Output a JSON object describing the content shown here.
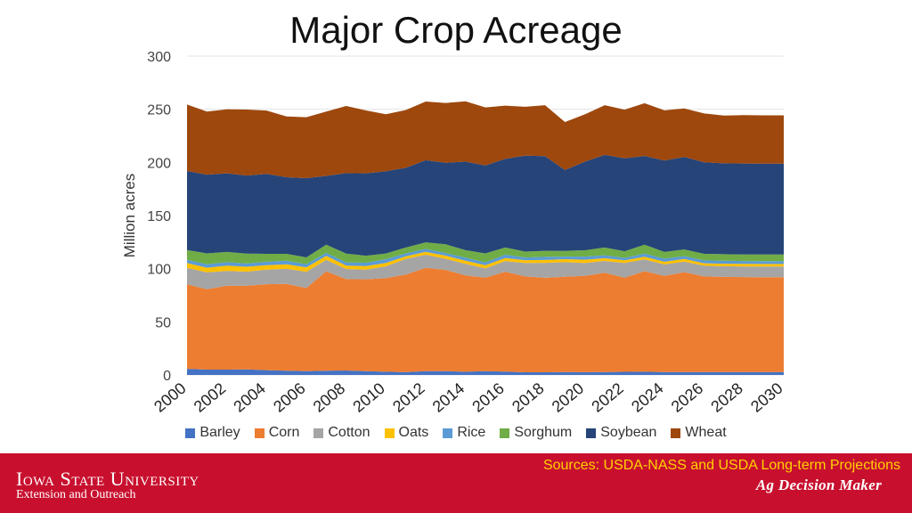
{
  "slide": {
    "title": "Major Crop Acreage"
  },
  "footer": {
    "university": "Iowa State University",
    "unit": "Extension and Outreach",
    "sources": "Sources: USDA-NASS and USDA Long-term Projections",
    "brand": "Ag Decision Maker",
    "bar_color": "#c8102e",
    "sources_color": "#ffd200"
  },
  "chart_data": {
    "type": "area",
    "stacked": true,
    "title": "",
    "xlabel": "",
    "ylabel": "Million acres",
    "ylim": [
      0,
      300
    ],
    "yticks": [
      0,
      50,
      100,
      150,
      200,
      250,
      300
    ],
    "x": [
      2000,
      2001,
      2002,
      2003,
      2004,
      2005,
      2006,
      2007,
      2008,
      2009,
      2010,
      2011,
      2012,
      2013,
      2014,
      2015,
      2016,
      2017,
      2018,
      2019,
      2020,
      2021,
      2022,
      2023,
      2024,
      2025,
      2026,
      2027,
      2028,
      2029,
      2030
    ],
    "xtick_labels": [
      "2000",
      "2002",
      "2004",
      "2006",
      "2008",
      "2010",
      "2012",
      "2014",
      "2016",
      "2018",
      "2020",
      "2022",
      "2024",
      "2026",
      "2028",
      "2030"
    ],
    "legend_position": "bottom",
    "grid": true,
    "series": [
      {
        "name": "Barley",
        "color": "#4472c4",
        "values": [
          5.8,
          5.0,
          5.0,
          5.3,
          4.5,
          3.9,
          3.5,
          4.0,
          4.2,
          3.6,
          3.0,
          2.6,
          3.6,
          3.5,
          3.0,
          3.6,
          3.1,
          2.5,
          2.5,
          2.7,
          2.6,
          2.7,
          2.9,
          3.0,
          2.7,
          2.7,
          2.7,
          2.7,
          2.7,
          2.7,
          2.7
        ]
      },
      {
        "name": "Corn",
        "color": "#ed7d31",
        "values": [
          79.5,
          75.7,
          78.9,
          78.6,
          80.9,
          81.8,
          78.3,
          93.5,
          86.0,
          86.4,
          88.2,
          91.9,
          97.2,
          95.4,
          90.6,
          88.0,
          94.0,
          90.2,
          88.9,
          89.7,
          90.7,
          93.4,
          88.6,
          94.6,
          90.6,
          94.0,
          90.0,
          89.6,
          89.4,
          89.3,
          89.3
        ]
      },
      {
        "name": "Cotton",
        "color": "#a5a5a5",
        "values": [
          15.5,
          15.8,
          14.0,
          13.3,
          13.7,
          14.2,
          15.3,
          10.8,
          9.5,
          9.1,
          11.0,
          14.7,
          12.3,
          10.4,
          11.0,
          8.6,
          10.1,
          12.7,
          14.1,
          13.7,
          12.1,
          11.2,
          13.8,
          11.1,
          10.7,
          10.0,
          10.0,
          10.0,
          10.0,
          10.0,
          10.0
        ]
      },
      {
        "name": "Oats",
        "color": "#ffc000",
        "values": [
          4.5,
          4.4,
          5.0,
          4.6,
          4.1,
          4.2,
          4.2,
          3.8,
          3.2,
          3.4,
          3.1,
          2.5,
          2.8,
          3.0,
          2.8,
          3.1,
          2.8,
          2.6,
          2.7,
          2.8,
          3.0,
          2.6,
          2.6,
          2.6,
          2.5,
          2.4,
          2.4,
          2.4,
          2.4,
          2.4,
          2.4
        ]
      },
      {
        "name": "Rice",
        "color": "#5b9bd5",
        "values": [
          3.1,
          3.3,
          3.2,
          3.0,
          3.3,
          3.4,
          2.8,
          2.8,
          3.0,
          3.1,
          3.6,
          2.7,
          2.7,
          2.5,
          2.9,
          2.6,
          3.2,
          2.5,
          2.9,
          2.5,
          3.0,
          2.7,
          2.2,
          2.9,
          2.9,
          2.8,
          2.7,
          2.7,
          2.7,
          2.7,
          2.7
        ]
      },
      {
        "name": "Sorghum",
        "color": "#70ad47",
        "values": [
          9.2,
          10.2,
          9.6,
          9.4,
          7.5,
          6.5,
          6.5,
          7.7,
          8.3,
          6.6,
          5.4,
          5.5,
          6.2,
          8.1,
          7.1,
          8.5,
          6.7,
          5.6,
          5.7,
          5.3,
          5.9,
          7.3,
          6.3,
          8.3,
          6.3,
          6.2,
          6.2,
          6.2,
          6.2,
          6.2,
          6.2
        ]
      },
      {
        "name": "Soybean",
        "color": "#264478",
        "values": [
          74.3,
          74.1,
          74.0,
          73.4,
          75.2,
          72.0,
          74.6,
          64.7,
          75.7,
          77.5,
          77.4,
          75.0,
          77.2,
          76.8,
          83.3,
          82.7,
          83.4,
          90.2,
          89.2,
          76.1,
          83.4,
          87.2,
          87.5,
          83.6,
          86.1,
          87.0,
          86.0,
          85.5,
          85.5,
          85.5,
          85.5
        ]
      },
      {
        "name": "Wheat",
        "color": "#9e480e",
        "values": [
          62.5,
          59.4,
          60.3,
          62.1,
          59.6,
          57.2,
          57.3,
          60.5,
          63.2,
          59.2,
          53.6,
          54.4,
          55.3,
          56.2,
          56.8,
          54.6,
          50.1,
          46.0,
          47.8,
          45.2,
          44.5,
          46.7,
          45.7,
          49.6,
          47.2,
          45.7,
          46.0,
          45.0,
          45.5,
          45.5,
          45.5
        ]
      }
    ]
  }
}
